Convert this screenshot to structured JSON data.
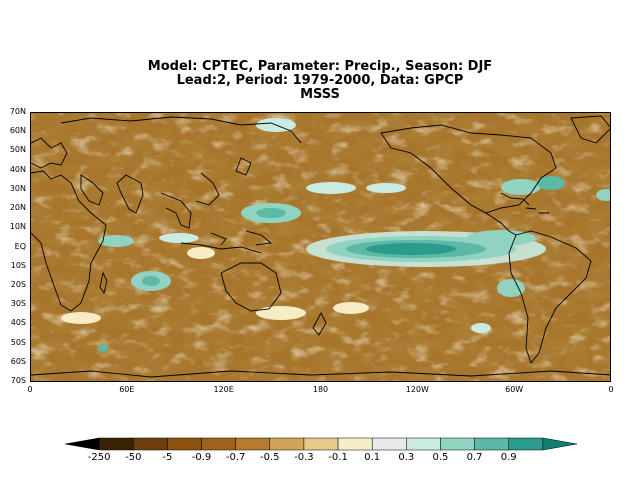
{
  "title": {
    "line1": "Model: CPTEC, Parameter: Precip., Season: DJF",
    "line2": "Lead:2, Period: 1979-2000, Data: GPCP",
    "line3": "MSSS"
  },
  "map": {
    "lat_ticks": [
      "70N",
      "60N",
      "50N",
      "40N",
      "30N",
      "20N",
      "10N",
      "EQ",
      "10S",
      "20S",
      "30S",
      "40S",
      "50S",
      "60S",
      "70S"
    ],
    "lon_ticks": [
      "0",
      "60E",
      "120E",
      "180",
      "120W",
      "60W",
      "0"
    ],
    "extent": {
      "lon_min": 0,
      "lon_max": 360,
      "lat_min": -70,
      "lat_max": 70
    }
  },
  "colorbar": {
    "labels": [
      "-250",
      "-50",
      "-5",
      "-0.9",
      "-0.7",
      "-0.5",
      "-0.3",
      "-0.1",
      "0.1",
      "0.3",
      "0.5",
      "0.7",
      "0.9"
    ],
    "colors": [
      "#000000",
      "#3a2206",
      "#6e3e0c",
      "#8d520f",
      "#a0621a",
      "#b87a2e",
      "#d1a559",
      "#e7c98c",
      "#f6ecc6",
      "#e9e9e9",
      "#c9ebe2",
      "#8fd3c0",
      "#5bb9a6",
      "#2b9c8b",
      "#13806f"
    ]
  }
}
